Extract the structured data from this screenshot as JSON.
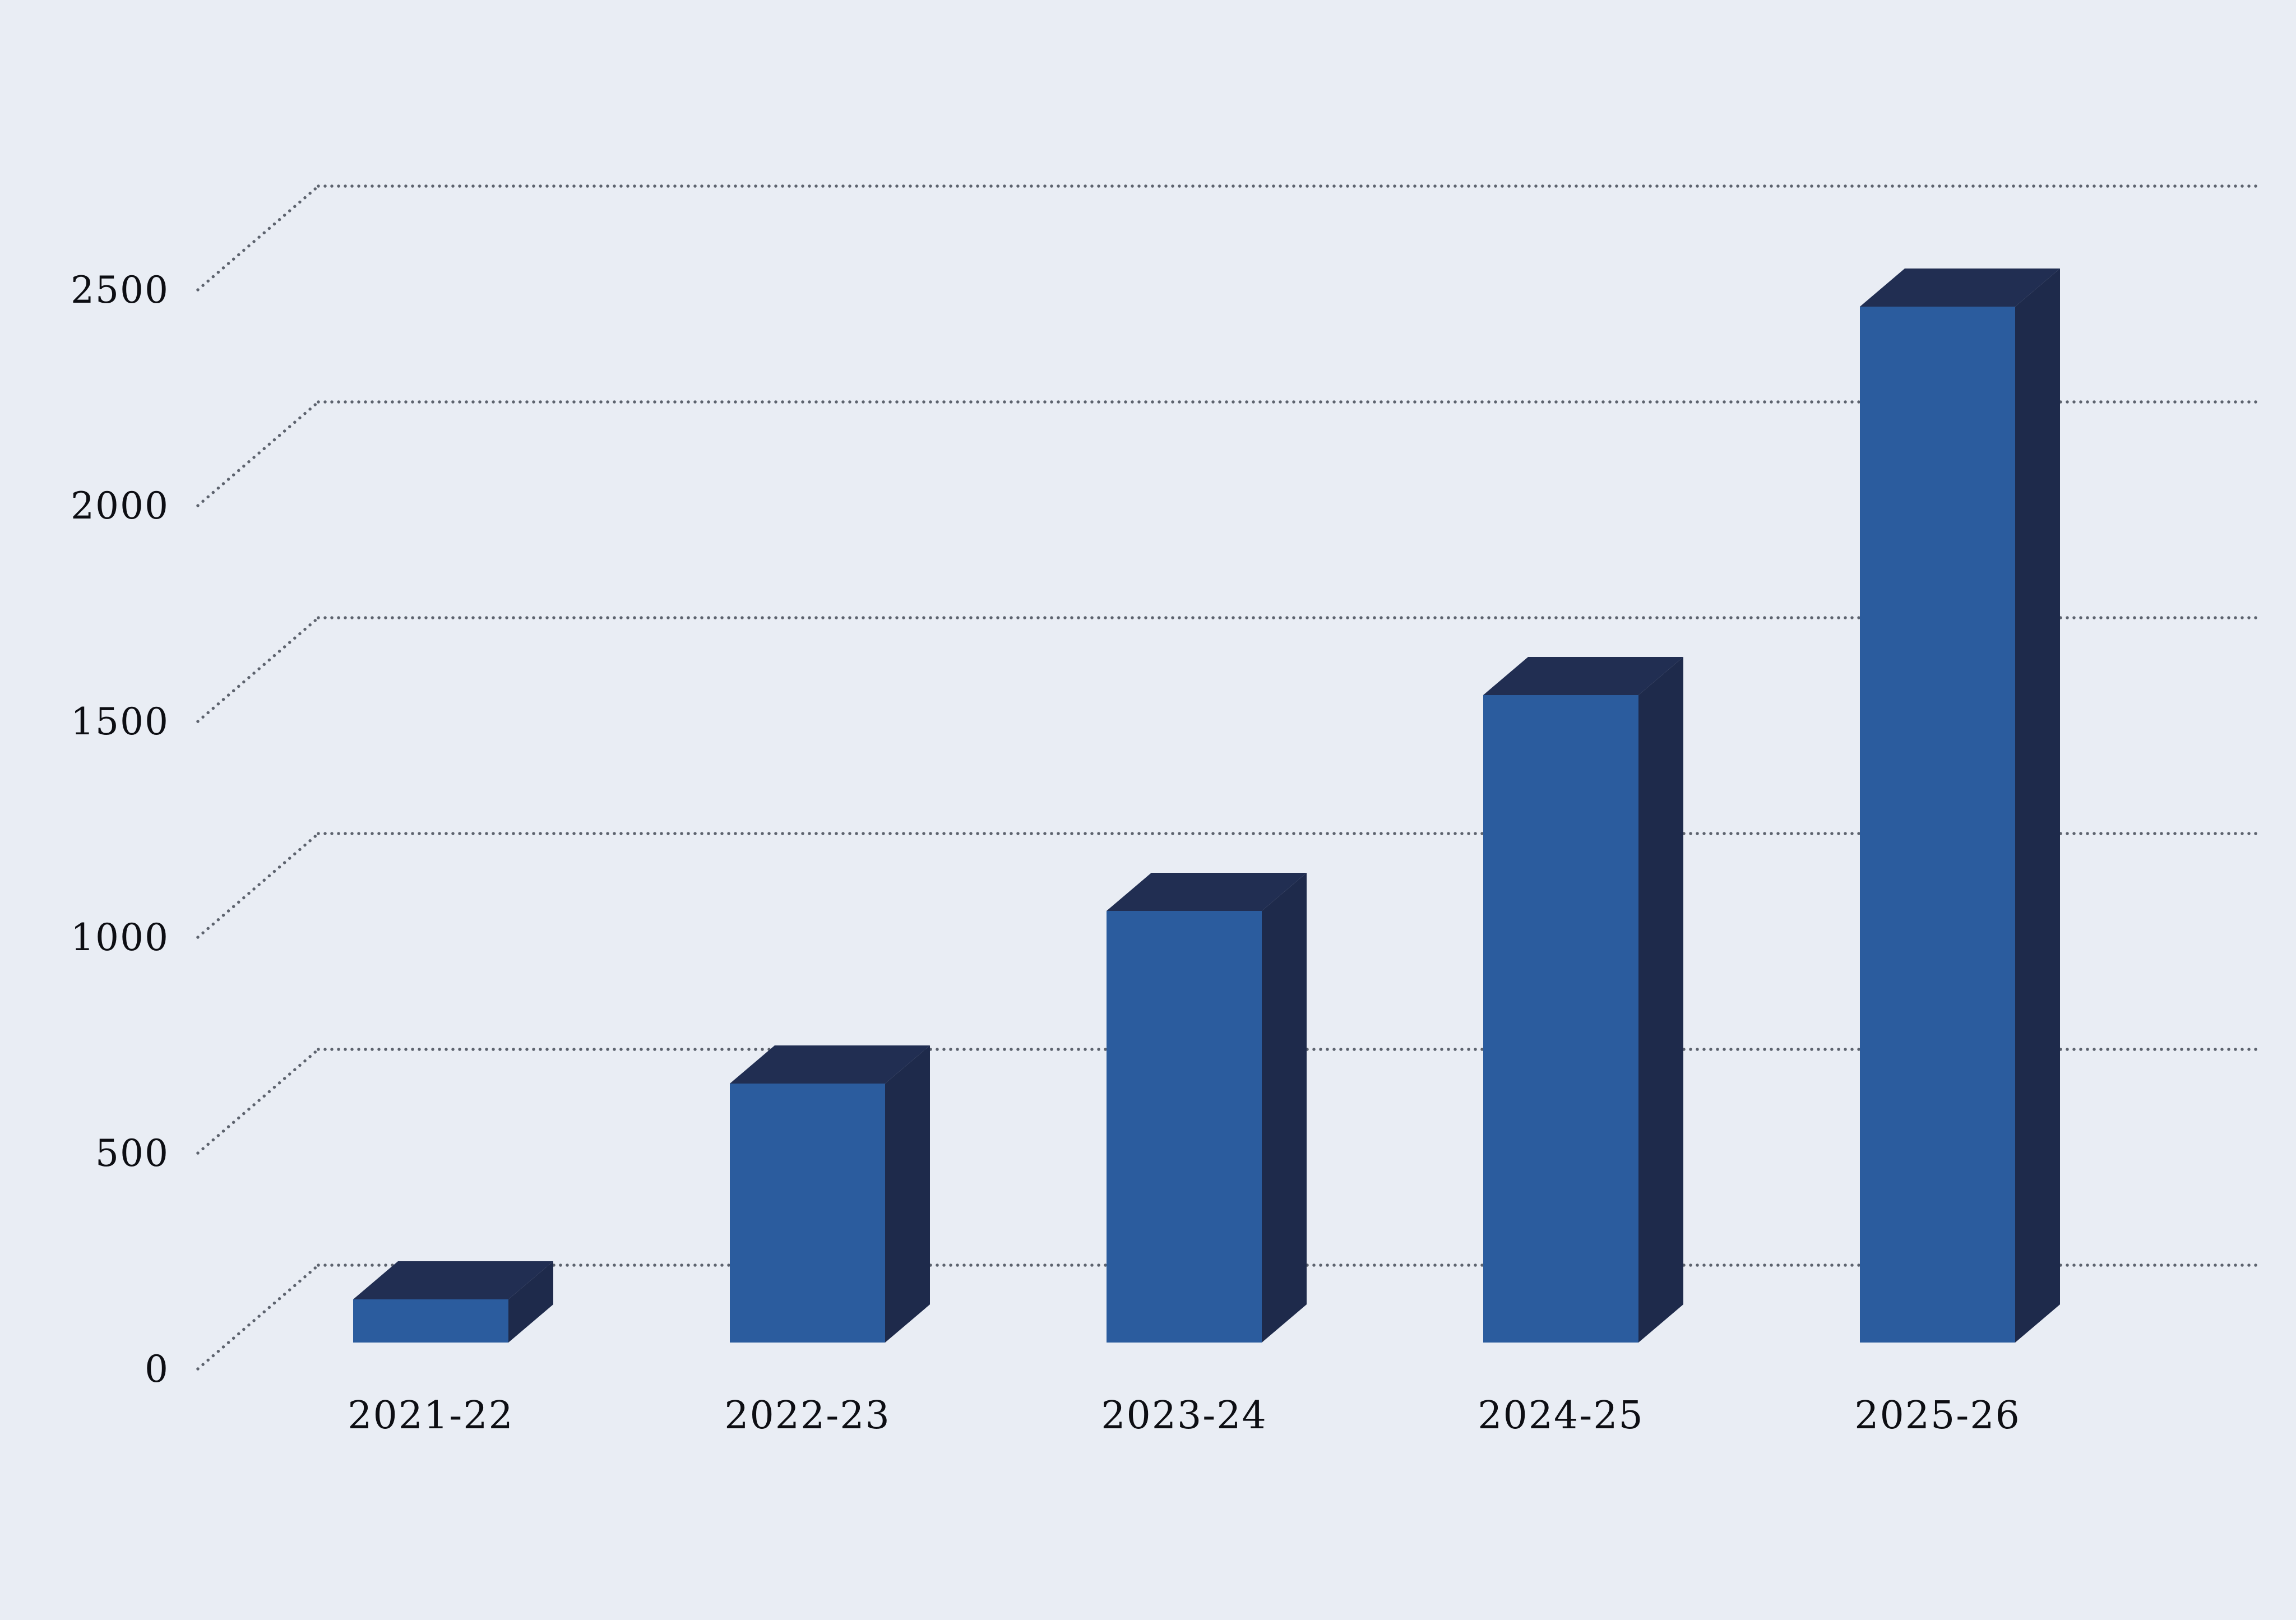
{
  "chart_data": {
    "type": "bar",
    "projection": "3d-oblique",
    "title": "",
    "xlabel": "",
    "ylabel": "",
    "categories": [
      "2021-22",
      "2022-23",
      "2023-24",
      "2024-25",
      "2025-26"
    ],
    "values": [
      100,
      600,
      1000,
      1500,
      2400
    ],
    "yticks": [
      0,
      500,
      1000,
      1500,
      2000,
      2500
    ],
    "ylim": [
      0,
      2500
    ],
    "ytick_interval": 500,
    "grid": "dotted-horizontal-with-depth-diagonals",
    "legend": "none",
    "colors": {
      "background": "#e9edf4",
      "bar_front": "#2b5c9e",
      "bar_top": "#212e52",
      "bar_side": "#1e2a4b",
      "gridline_dots": "#5d636e",
      "label_text": "#0d0e13"
    }
  }
}
